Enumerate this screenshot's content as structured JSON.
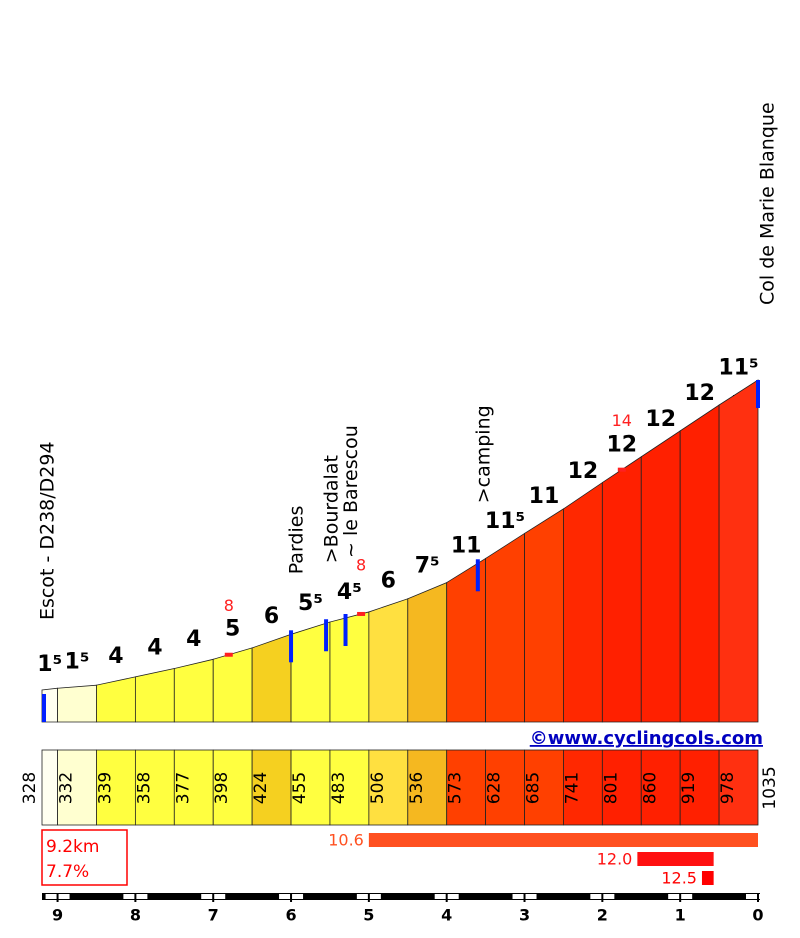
{
  "chart_data": {
    "type": "climb-profile",
    "title": "Col de Marie Blanque",
    "start_label": "Escot - D238/D294",
    "credit": "©www.cyclingcols.com",
    "xlim": [
      9.2,
      0
    ],
    "xticks": [
      9,
      8,
      7,
      6,
      5,
      4,
      3,
      2,
      1,
      0
    ],
    "ylim": [
      255,
      1035
    ],
    "distances": [
      9.2,
      9,
      8.5,
      8,
      7.5,
      7,
      6.5,
      6,
      5.5,
      5,
      4.5,
      4,
      3.5,
      3,
      2.5,
      2,
      1.5,
      1,
      0.5,
      0
    ],
    "elevations": [
      328,
      332,
      339,
      358,
      377,
      398,
      424,
      455,
      483,
      506,
      536,
      573,
      628,
      685,
      741,
      801,
      860,
      919,
      978,
      1035
    ],
    "gradients": [
      1.5,
      1.5,
      4,
      4,
      4,
      5,
      6,
      5.5,
      4.5,
      6,
      7.5,
      11,
      11.5,
      11,
      12,
      12,
      12,
      12,
      11.5
    ],
    "gradient_labels": [
      "1⁵",
      "1⁵",
      "4",
      "4",
      "4",
      "5",
      "6",
      "5⁵",
      "4⁵",
      "6",
      "7⁵",
      "11",
      "11⁵",
      "11",
      "12",
      "12",
      "12",
      "12",
      "11⁵"
    ],
    "colors": [
      "#fffff0",
      "#ffffd0",
      "#ffff40",
      "#ffff40",
      "#ffff40",
      "#ffff40",
      "#f5d020",
      "#ffff40",
      "#ffff40",
      "#ffe040",
      "#f5b820",
      "#ff4000",
      "#ff4000",
      "#ff4000",
      "#ff2800",
      "#ff2000",
      "#ff2000",
      "#ff2000",
      "#ff3010"
    ],
    "max_gradients": [
      {
        "km": 6.8,
        "value": 8
      },
      {
        "km": 5.1,
        "value": 8
      },
      {
        "km": 1.75,
        "value": 14
      }
    ],
    "places": [
      {
        "km": 6.0,
        "label": "Pardies"
      },
      {
        "km": 5.55,
        "label": ">Bourdalat"
      },
      {
        "km": 5.3,
        "label": "~ le Barescou"
      },
      {
        "km": 3.6,
        "label": ">camping"
      }
    ],
    "summary": [
      "9.2km",
      "7.7%"
    ],
    "steepest": [
      {
        "value": 10.6,
        "from": 5,
        "to": 0,
        "color": "#ff5020"
      },
      {
        "value": 12,
        "label": "12.0",
        "from": 1.55,
        "to": 0.57,
        "color": "#ff1010"
      },
      {
        "value": 12.5,
        "from": 0.72,
        "to": 0.57,
        "color": "#ff0000"
      }
    ]
  }
}
